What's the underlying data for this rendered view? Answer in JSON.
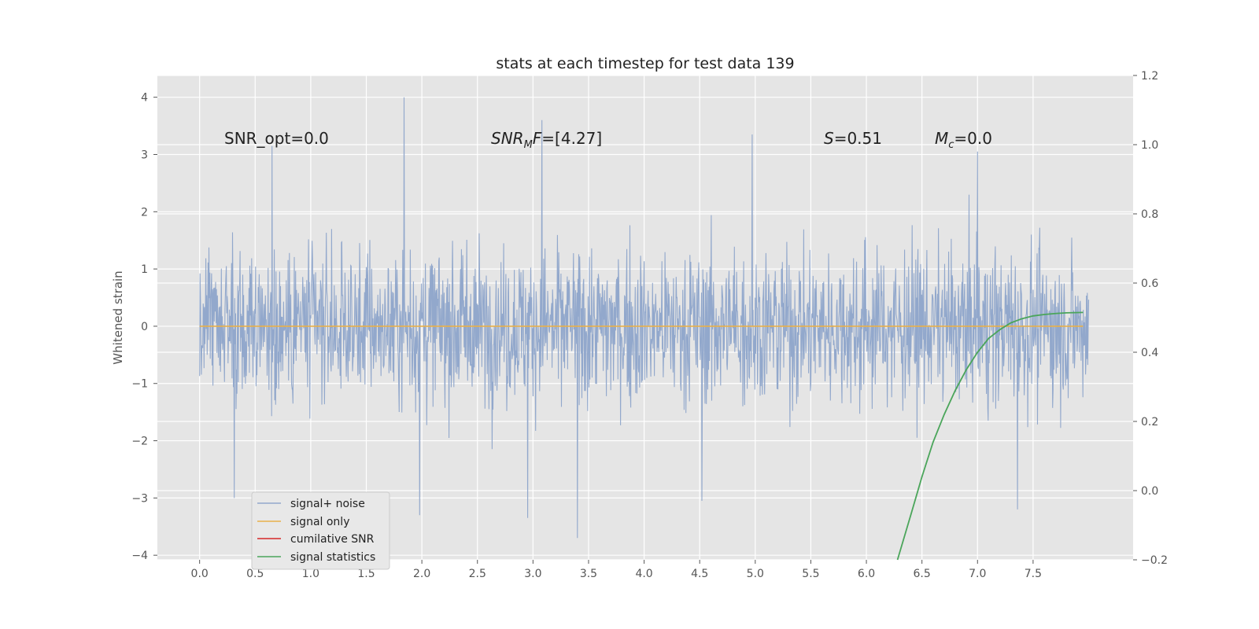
{
  "chart_data": {
    "type": "line",
    "title": "stats at each timestep for test data 139",
    "xlabel": "",
    "ylabel": "Whitened strain",
    "xlim": [
      -0.38,
      8.4
    ],
    "ylim": [
      -4.08,
      4.38
    ],
    "ylim_right": [
      -0.2,
      1.2
    ],
    "x_ticks": [
      "0.0",
      "0.5",
      "1.0",
      "1.5",
      "2.0",
      "2.5",
      "3.0",
      "3.5",
      "4.0",
      "4.5",
      "5.0",
      "5.5",
      "6.0",
      "6.5",
      "7.0",
      "7.5"
    ],
    "y_ticks": [
      "4",
      "3",
      "2",
      "1",
      "0",
      "−1",
      "−2",
      "−3",
      "−4"
    ],
    "y_ticks_right": [
      "1.2",
      "1.0",
      "0.8",
      "0.6",
      "0.4",
      "0.2",
      "0.0",
      "−0.2"
    ],
    "grid": true,
    "legend_position": "lower-left",
    "annotations": {
      "snr_opt": "SNR_opt=0.0",
      "snr_mf_main": "SNR",
      "snr_mf_sub": "M",
      "snr_mf_tail": "F",
      "snr_mf_value": "=[4.27]",
      "s_main": "S",
      "s_value": "=0.51",
      "mc_main": "M",
      "mc_sub": "c",
      "mc_value": "=0.0"
    },
    "series": [
      {
        "name": "signal+ noise",
        "color": "#92a8cc",
        "description_range": [
          -3.7,
          4.0
        ],
        "x_range": [
          0.0,
          8.0
        ],
        "notable_peaks": [
          [
            1.84,
            4.0
          ],
          [
            3.08,
            3.6
          ],
          [
            4.97,
            3.35
          ],
          [
            7.0,
            3.05
          ],
          [
            0.65,
            3.15
          ],
          [
            3.4,
            -3.7
          ],
          [
            2.95,
            -3.35
          ],
          [
            1.98,
            -3.3
          ],
          [
            7.36,
            -3.2
          ],
          [
            4.52,
            -3.05
          ],
          [
            0.31,
            -3.0
          ]
        ]
      },
      {
        "name": "signal only",
        "color": "#e8b04a",
        "x": [
          0.0,
          7.95
        ],
        "values": [
          0.0,
          0.0
        ]
      },
      {
        "name": "cumilative SNR",
        "color": "#d62728",
        "x": [],
        "values": []
      },
      {
        "name": "signal statistics",
        "color": "#4aa55a",
        "axis": "right",
        "x": [
          6.28,
          6.4,
          6.5,
          6.6,
          6.7,
          6.8,
          6.9,
          7.0,
          7.1,
          7.2,
          7.3,
          7.4,
          7.5,
          7.6,
          7.7,
          7.8,
          7.95
        ],
        "values": [
          -0.2,
          -0.07,
          0.04,
          0.14,
          0.22,
          0.29,
          0.35,
          0.4,
          0.44,
          0.465,
          0.485,
          0.497,
          0.505,
          0.509,
          0.512,
          0.514,
          0.515
        ]
      }
    ]
  }
}
